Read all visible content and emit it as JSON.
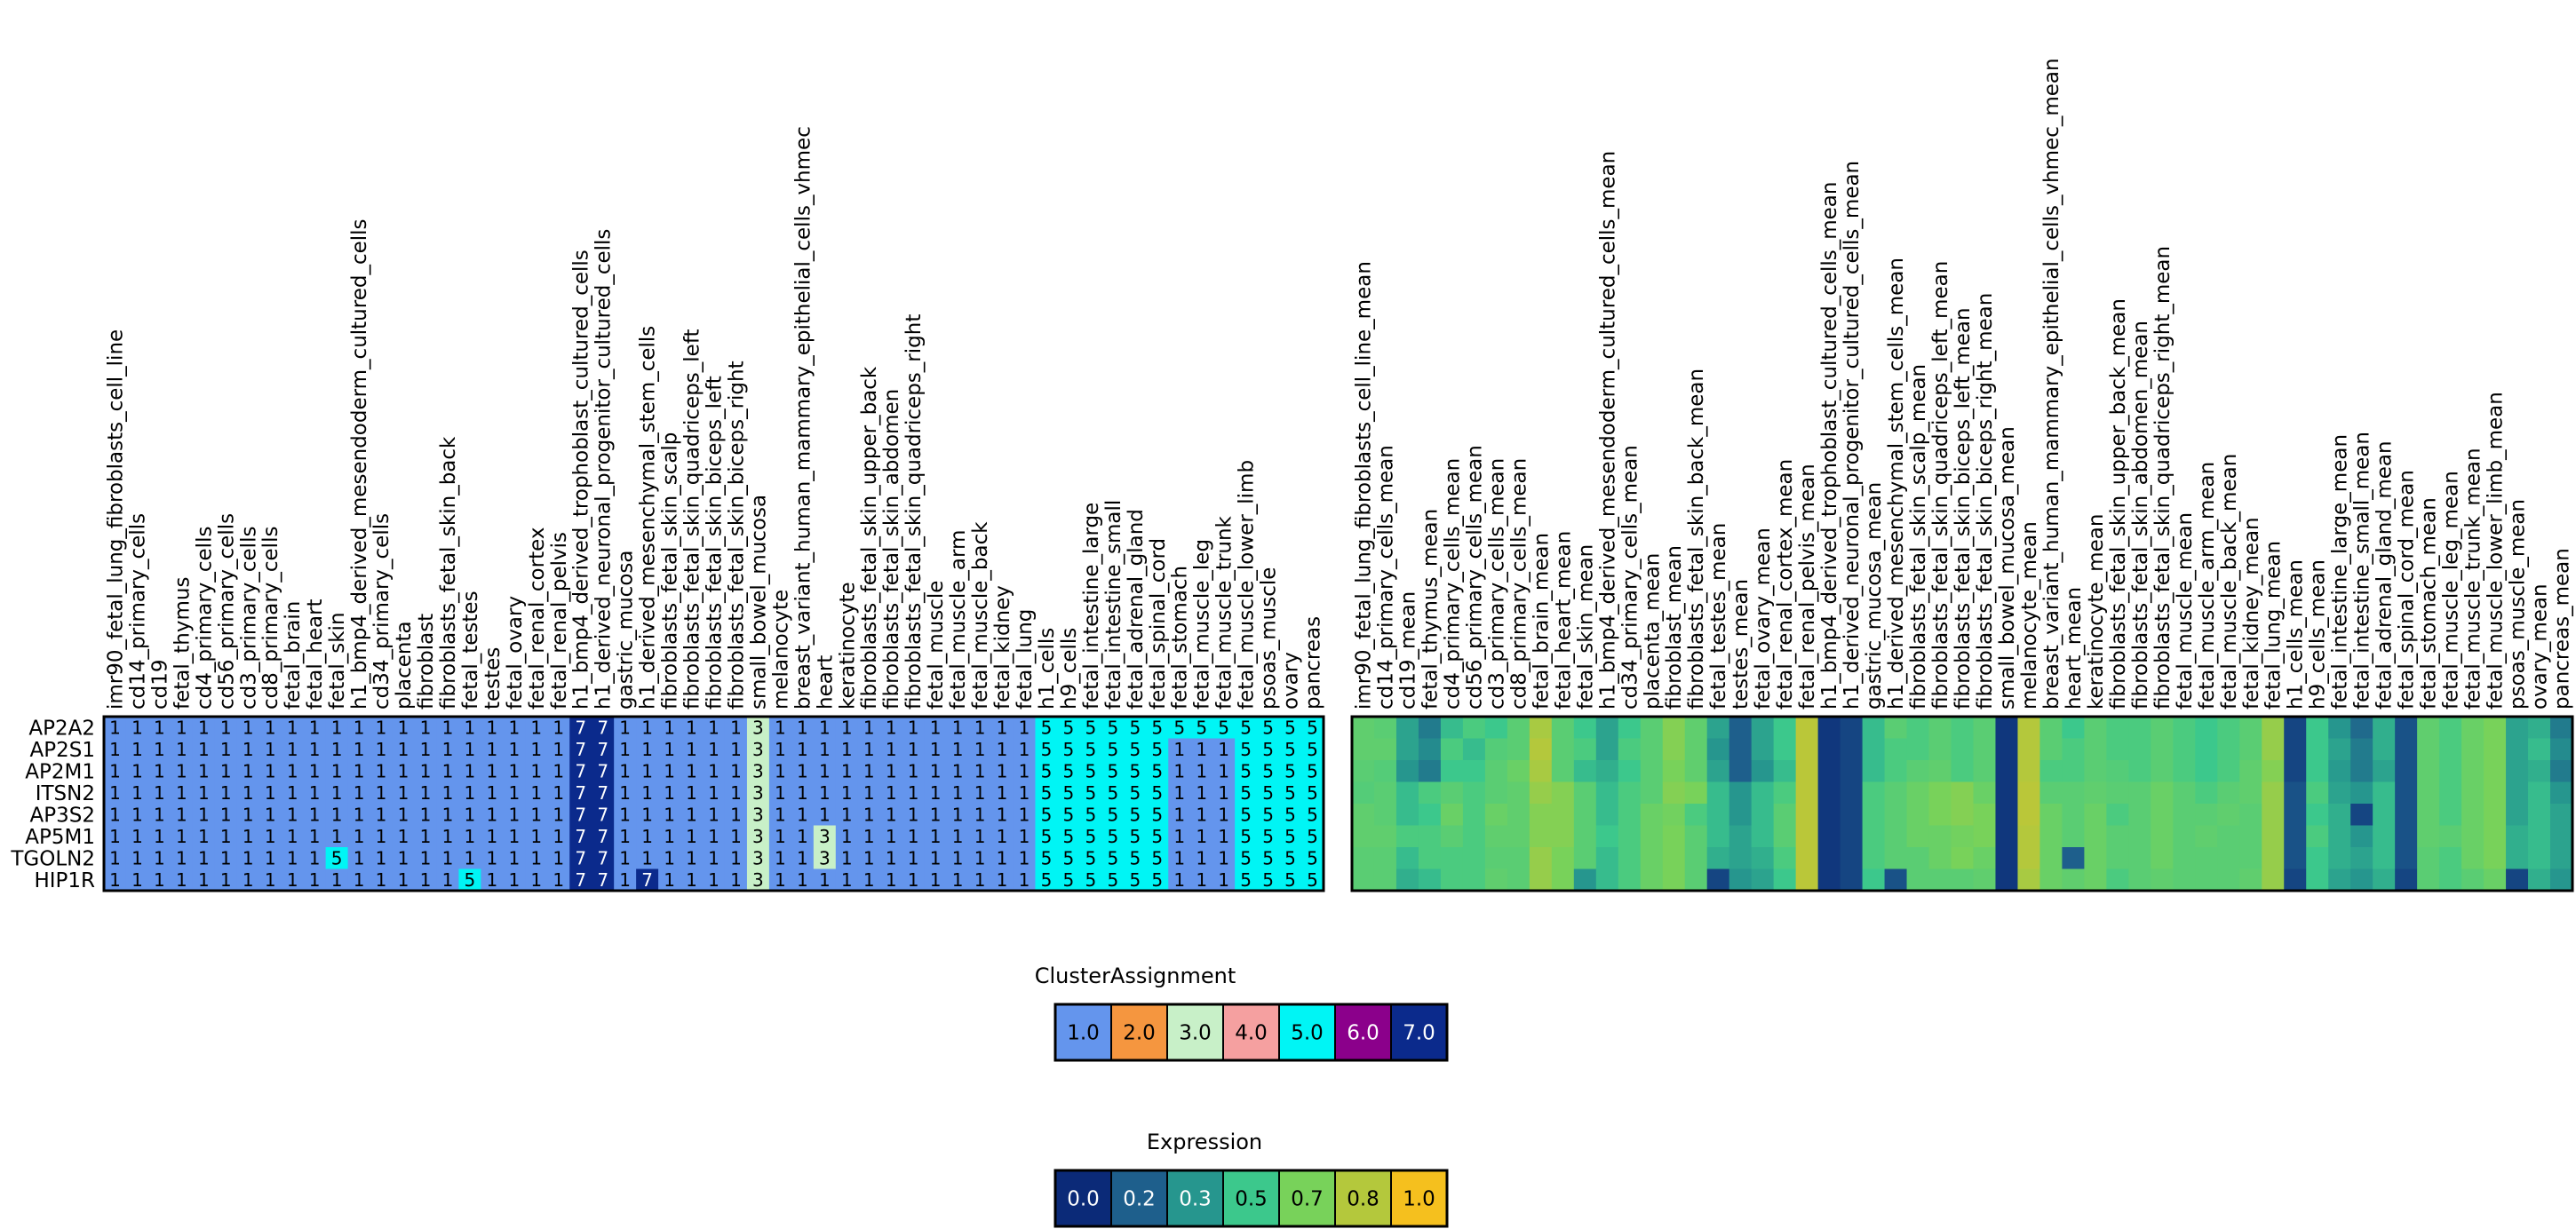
{
  "chart_data": [
    {
      "type": "heatmap",
      "name": "cluster-heatmap",
      "rows": [
        "AP2A2",
        "AP2S1",
        "AP2M1",
        "ITSN2",
        "AP3S2",
        "AP5M1",
        "TGOLN2",
        "HIP1R"
      ],
      "columns": [
        "imr90_fetal_lung_fibroblasts_cell_line",
        "cd14_primary_cells",
        "cd19",
        "fetal_thymus",
        "cd4_primary_cells",
        "cd56_primary_cells",
        "cd3_primary_cells",
        "cd8_primary_cells",
        "fetal_brain",
        "fetal_heart",
        "fetal_skin",
        "h1_bmp4_derived_mesendoderm_cultured_cells",
        "cd34_primary_cells",
        "placenta",
        "fibroblast",
        "fibroblasts_fetal_skin_back",
        "fetal_testes",
        "testes",
        "fetal_ovary",
        "fetal_renal_cortex",
        "fetal_renal_pelvis",
        "h1_bmp4_derived_trophoblast_cultured_cells",
        "h1_derived_neuronal_progenitor_cultured_cells",
        "gastric_mucosa",
        "h1_derived_mesenchymal_stem_cells",
        "fibroblasts_fetal_skin_scalp",
        "fibroblasts_fetal_skin_quadriceps_left",
        "fibroblasts_fetal_skin_biceps_left",
        "fibroblasts_fetal_skin_biceps_right",
        "small_bowel_mucosa",
        "melanocyte",
        "breast_variant_human_mammary_epithelial_cells_vhmec",
        "heart",
        "keratinocyte",
        "fibroblasts_fetal_skin_upper_back",
        "fibroblasts_fetal_skin_abdomen",
        "fibroblasts_fetal_skin_quadriceps_right",
        "fetal_muscle",
        "fetal_muscle_arm",
        "fetal_muscle_back",
        "fetal_kidney",
        "fetal_lung",
        "h1_cells",
        "h9_cells",
        "fetal_intestine_large",
        "fetal_intestine_small",
        "fetal_adrenal_gland",
        "fetal_spinal_cord",
        "fetal_stomach",
        "fetal_muscle_leg",
        "fetal_muscle_trunk",
        "fetal_muscle_lower_limb",
        "psoas_muscle",
        "ovary",
        "pancreas"
      ],
      "values": [
        [
          1,
          1,
          1,
          1,
          1,
          1,
          1,
          1,
          1,
          1,
          1,
          1,
          1,
          1,
          1,
          1,
          1,
          1,
          1,
          1,
          1,
          7,
          7,
          1,
          1,
          1,
          1,
          1,
          1,
          3,
          1,
          1,
          1,
          1,
          1,
          1,
          1,
          1,
          1,
          1,
          1,
          1,
          5,
          5,
          5,
          5,
          5,
          5,
          5,
          5,
          5,
          5,
          5,
          5,
          5
        ],
        [
          1,
          1,
          1,
          1,
          1,
          1,
          1,
          1,
          1,
          1,
          1,
          1,
          1,
          1,
          1,
          1,
          1,
          1,
          1,
          1,
          1,
          7,
          7,
          1,
          1,
          1,
          1,
          1,
          1,
          3,
          1,
          1,
          1,
          1,
          1,
          1,
          1,
          1,
          1,
          1,
          1,
          1,
          5,
          5,
          5,
          5,
          5,
          5,
          1,
          1,
          1,
          5,
          5,
          5,
          5
        ],
        [
          1,
          1,
          1,
          1,
          1,
          1,
          1,
          1,
          1,
          1,
          1,
          1,
          1,
          1,
          1,
          1,
          1,
          1,
          1,
          1,
          1,
          7,
          7,
          1,
          1,
          1,
          1,
          1,
          1,
          3,
          1,
          1,
          1,
          1,
          1,
          1,
          1,
          1,
          1,
          1,
          1,
          1,
          5,
          5,
          5,
          5,
          5,
          5,
          1,
          1,
          1,
          5,
          5,
          5,
          5
        ],
        [
          1,
          1,
          1,
          1,
          1,
          1,
          1,
          1,
          1,
          1,
          1,
          1,
          1,
          1,
          1,
          1,
          1,
          1,
          1,
          1,
          1,
          7,
          7,
          1,
          1,
          1,
          1,
          1,
          1,
          3,
          1,
          1,
          1,
          1,
          1,
          1,
          1,
          1,
          1,
          1,
          1,
          1,
          5,
          5,
          5,
          5,
          5,
          5,
          1,
          1,
          1,
          5,
          5,
          5,
          5
        ],
        [
          1,
          1,
          1,
          1,
          1,
          1,
          1,
          1,
          1,
          1,
          1,
          1,
          1,
          1,
          1,
          1,
          1,
          1,
          1,
          1,
          1,
          7,
          7,
          1,
          1,
          1,
          1,
          1,
          1,
          3,
          1,
          1,
          1,
          1,
          1,
          1,
          1,
          1,
          1,
          1,
          1,
          1,
          5,
          5,
          5,
          5,
          5,
          5,
          1,
          1,
          1,
          5,
          5,
          5,
          5
        ],
        [
          1,
          1,
          1,
          1,
          1,
          1,
          1,
          1,
          1,
          1,
          1,
          1,
          1,
          1,
          1,
          1,
          1,
          1,
          1,
          1,
          1,
          7,
          7,
          1,
          1,
          1,
          1,
          1,
          1,
          3,
          1,
          1,
          3,
          1,
          1,
          1,
          1,
          1,
          1,
          1,
          1,
          1,
          5,
          5,
          5,
          5,
          5,
          5,
          1,
          1,
          1,
          5,
          5,
          5,
          5
        ],
        [
          1,
          1,
          1,
          1,
          1,
          1,
          1,
          1,
          1,
          1,
          5,
          1,
          1,
          1,
          1,
          1,
          1,
          1,
          1,
          1,
          1,
          7,
          7,
          1,
          1,
          1,
          1,
          1,
          1,
          3,
          1,
          1,
          3,
          1,
          1,
          1,
          1,
          1,
          1,
          1,
          1,
          1,
          5,
          5,
          5,
          5,
          5,
          5,
          1,
          1,
          1,
          5,
          5,
          5,
          5
        ],
        [
          1,
          1,
          1,
          1,
          1,
          1,
          1,
          1,
          1,
          1,
          1,
          1,
          1,
          1,
          1,
          1,
          5,
          1,
          1,
          1,
          1,
          7,
          7,
          1,
          7,
          1,
          1,
          1,
          1,
          3,
          1,
          1,
          1,
          1,
          1,
          1,
          1,
          1,
          1,
          1,
          1,
          1,
          5,
          5,
          5,
          5,
          5,
          5,
          1,
          1,
          1,
          5,
          5,
          5,
          5
        ]
      ],
      "cell_labels": true
    },
    {
      "type": "heatmap",
      "name": "expression-heatmap",
      "rows": [
        "AP2A2",
        "AP2S1",
        "AP2M1",
        "ITSN2",
        "AP3S2",
        "AP5M1",
        "TGOLN2",
        "HIP1R"
      ],
      "columns": [
        "imr90_fetal_lung_fibroblasts_cell_line_mean",
        "cd14_primary_cells_mean",
        "cd19_mean",
        "fetal_thymus_mean",
        "cd4_primary_cells_mean",
        "cd56_primary_cells_mean",
        "cd3_primary_cells_mean",
        "cd8_primary_cells_mean",
        "fetal_brain_mean",
        "fetal_heart_mean",
        "fetal_skin_mean",
        "h1_bmp4_derived_mesendoderm_cultured_cells_mean",
        "cd34_primary_cells_mean",
        "placenta_mean",
        "fibroblast_mean",
        "fibroblasts_fetal_skin_back_mean",
        "fetal_testes_mean",
        "testes_mean",
        "fetal_ovary_mean",
        "fetal_renal_cortex_mean",
        "fetal_renal_pelvis_mean",
        "h1_bmp4_derived_trophoblast_cultured_cells_mean",
        "h1_derived_neuronal_progenitor_cultured_cells_mean",
        "gastric_mucosa_mean",
        "h1_derived_mesenchymal_stem_cells_mean",
        "fibroblasts_fetal_skin_scalp_mean",
        "fibroblasts_fetal_skin_quadriceps_left_mean",
        "fibroblasts_fetal_skin_biceps_left_mean",
        "fibroblasts_fetal_skin_biceps_right_mean",
        "small_bowel_mucosa_mean",
        "melanocyte_mean",
        "breast_variant_human_mammary_epithelial_cells_vhmec_mean",
        "heart_mean",
        "keratinocyte_mean",
        "fibroblasts_fetal_skin_upper_back_mean",
        "fibroblasts_fetal_skin_abdomen_mean",
        "fibroblasts_fetal_skin_quadriceps_right_mean",
        "fetal_muscle_mean",
        "fetal_muscle_arm_mean",
        "fetal_muscle_back_mean",
        "fetal_kidney_mean",
        "fetal_lung_mean",
        "h1_cells_mean",
        "h9_cells_mean",
        "fetal_intestine_large_mean",
        "fetal_intestine_small_mean",
        "fetal_adrenal_gland_mean",
        "fetal_spinal_cord_mean",
        "fetal_stomach_mean",
        "fetal_muscle_leg_mean",
        "fetal_muscle_trunk_mean",
        "fetal_muscle_lower_limb_mean",
        "psoas_muscle_mean",
        "ovary_mean",
        "pancreas_mean"
      ],
      "values": [
        [
          0.62,
          0.6,
          0.35,
          0.25,
          0.45,
          0.55,
          0.5,
          0.6,
          0.78,
          0.6,
          0.5,
          0.35,
          0.5,
          0.6,
          0.72,
          0.62,
          0.35,
          0.2,
          0.35,
          0.5,
          0.82,
          0.05,
          0.1,
          0.45,
          0.6,
          0.55,
          0.6,
          0.55,
          0.6,
          0.05,
          0.8,
          0.6,
          0.5,
          0.6,
          0.55,
          0.55,
          0.6,
          0.55,
          0.5,
          0.55,
          0.6,
          0.75,
          0.1,
          0.5,
          0.3,
          0.22,
          0.4,
          0.15,
          0.62,
          0.55,
          0.65,
          0.7,
          0.35,
          0.4,
          0.25
        ],
        [
          0.62,
          0.62,
          0.35,
          0.28,
          0.55,
          0.45,
          0.58,
          0.6,
          0.8,
          0.6,
          0.55,
          0.35,
          0.55,
          0.6,
          0.72,
          0.62,
          0.3,
          0.2,
          0.35,
          0.5,
          0.82,
          0.05,
          0.1,
          0.45,
          0.55,
          0.55,
          0.6,
          0.55,
          0.6,
          0.05,
          0.8,
          0.6,
          0.55,
          0.6,
          0.55,
          0.55,
          0.6,
          0.55,
          0.5,
          0.55,
          0.6,
          0.75,
          0.1,
          0.5,
          0.35,
          0.25,
          0.4,
          0.15,
          0.62,
          0.55,
          0.65,
          0.7,
          0.35,
          0.45,
          0.28
        ],
        [
          0.6,
          0.58,
          0.3,
          0.25,
          0.5,
          0.5,
          0.6,
          0.65,
          0.78,
          0.6,
          0.45,
          0.4,
          0.5,
          0.6,
          0.7,
          0.62,
          0.35,
          0.2,
          0.3,
          0.45,
          0.82,
          0.05,
          0.1,
          0.45,
          0.55,
          0.6,
          0.62,
          0.55,
          0.6,
          0.05,
          0.8,
          0.55,
          0.55,
          0.6,
          0.58,
          0.55,
          0.6,
          0.55,
          0.5,
          0.55,
          0.62,
          0.72,
          0.1,
          0.5,
          0.32,
          0.25,
          0.35,
          0.15,
          0.62,
          0.55,
          0.65,
          0.7,
          0.35,
          0.4,
          0.25
        ],
        [
          0.58,
          0.6,
          0.45,
          0.55,
          0.6,
          0.55,
          0.6,
          0.62,
          0.75,
          0.72,
          0.6,
          0.45,
          0.55,
          0.6,
          0.72,
          0.7,
          0.45,
          0.3,
          0.45,
          0.55,
          0.82,
          0.05,
          0.1,
          0.55,
          0.6,
          0.65,
          0.7,
          0.72,
          0.65,
          0.05,
          0.82,
          0.6,
          0.6,
          0.62,
          0.6,
          0.6,
          0.65,
          0.6,
          0.55,
          0.6,
          0.62,
          0.75,
          0.15,
          0.55,
          0.35,
          0.3,
          0.45,
          0.15,
          0.62,
          0.55,
          0.65,
          0.7,
          0.35,
          0.45,
          0.3
        ],
        [
          0.62,
          0.6,
          0.45,
          0.5,
          0.65,
          0.55,
          0.65,
          0.62,
          0.72,
          0.72,
          0.6,
          0.45,
          0.55,
          0.65,
          0.68,
          0.55,
          0.45,
          0.3,
          0.45,
          0.6,
          0.82,
          0.05,
          0.1,
          0.55,
          0.6,
          0.65,
          0.7,
          0.72,
          0.7,
          0.05,
          0.82,
          0.65,
          0.6,
          0.65,
          0.55,
          0.6,
          0.65,
          0.6,
          0.6,
          0.62,
          0.6,
          0.75,
          0.15,
          0.5,
          0.4,
          0.1,
          0.45,
          0.15,
          0.62,
          0.55,
          0.65,
          0.7,
          0.35,
          0.45,
          0.35
        ],
        [
          0.62,
          0.62,
          0.55,
          0.55,
          0.6,
          0.55,
          0.62,
          0.62,
          0.72,
          0.72,
          0.6,
          0.5,
          0.55,
          0.65,
          0.7,
          0.6,
          0.45,
          0.35,
          0.45,
          0.6,
          0.82,
          0.05,
          0.1,
          0.55,
          0.6,
          0.65,
          0.65,
          0.68,
          0.7,
          0.05,
          0.8,
          0.65,
          0.6,
          0.65,
          0.6,
          0.6,
          0.65,
          0.6,
          0.62,
          0.6,
          0.6,
          0.75,
          0.15,
          0.55,
          0.4,
          0.3,
          0.45,
          0.15,
          0.62,
          0.6,
          0.65,
          0.7,
          0.4,
          0.45,
          0.35
        ],
        [
          0.6,
          0.6,
          0.45,
          0.55,
          0.55,
          0.55,
          0.6,
          0.6,
          0.75,
          0.7,
          0.6,
          0.45,
          0.55,
          0.65,
          0.7,
          0.6,
          0.4,
          0.35,
          0.4,
          0.55,
          0.82,
          0.05,
          0.1,
          0.55,
          0.6,
          0.6,
          0.65,
          0.7,
          0.65,
          0.05,
          0.8,
          0.65,
          0.2,
          0.65,
          0.6,
          0.6,
          0.65,
          0.6,
          0.6,
          0.6,
          0.6,
          0.75,
          0.15,
          0.5,
          0.4,
          0.35,
          0.45,
          0.15,
          0.6,
          0.55,
          0.65,
          0.7,
          0.4,
          0.45,
          0.35
        ],
        [
          0.6,
          0.6,
          0.4,
          0.45,
          0.55,
          0.55,
          0.62,
          0.6,
          0.75,
          0.7,
          0.3,
          0.45,
          0.55,
          0.65,
          0.7,
          0.6,
          0.1,
          0.3,
          0.35,
          0.5,
          0.82,
          0.05,
          0.1,
          0.5,
          0.15,
          0.6,
          0.6,
          0.6,
          0.62,
          0.05,
          0.78,
          0.65,
          0.62,
          0.65,
          0.55,
          0.6,
          0.62,
          0.6,
          0.6,
          0.6,
          0.62,
          0.75,
          0.1,
          0.5,
          0.35,
          0.3,
          0.4,
          0.1,
          0.6,
          0.55,
          0.6,
          0.65,
          0.1,
          0.4,
          0.3
        ]
      ]
    }
  ],
  "legends": {
    "cluster": {
      "title": "ClusterAssignment",
      "entries": [
        {
          "label": "1.0",
          "color": "#6495ED"
        },
        {
          "label": "2.0",
          "color": "#F5963F"
        },
        {
          "label": "3.0",
          "color": "#C8F0C8"
        },
        {
          "label": "4.0",
          "color": "#F5A0A0"
        },
        {
          "label": "5.0",
          "color": "#00F5F5"
        },
        {
          "label": "6.0",
          "color": "#8B008B"
        },
        {
          "label": "7.0",
          "color": "#0B2A8C"
        }
      ]
    },
    "expression": {
      "title": "Expression",
      "entries": [
        {
          "label": "0.0",
          "color": "#0B2A78"
        },
        {
          "label": "0.2",
          "color": "#1E5F8C"
        },
        {
          "label": "0.3",
          "color": "#26968E"
        },
        {
          "label": "0.5",
          "color": "#3CC88C"
        },
        {
          "label": "0.7",
          "color": "#78D25A"
        },
        {
          "label": "0.8",
          "color": "#B4C83C"
        },
        {
          "label": "1.0",
          "color": "#F5C01E"
        }
      ]
    }
  }
}
